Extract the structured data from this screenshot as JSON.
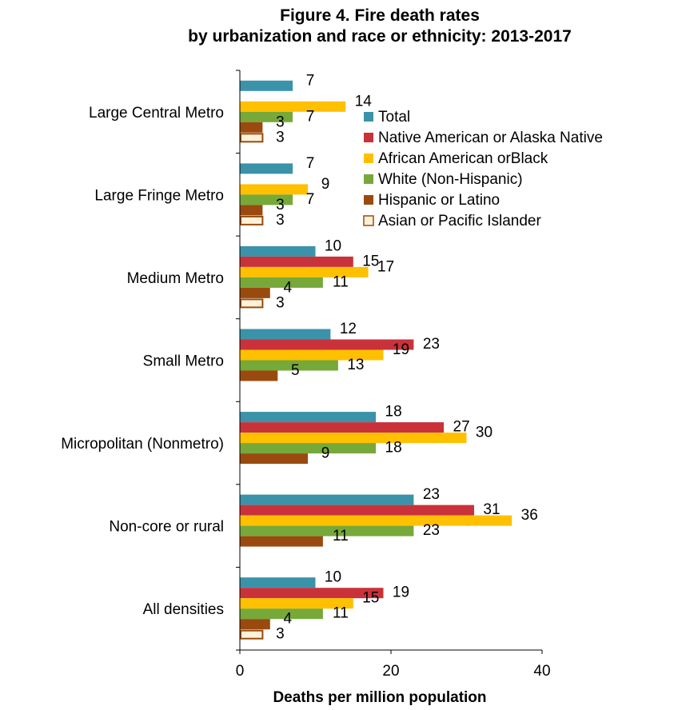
{
  "chart_data": {
    "type": "bar",
    "orientation": "horizontal",
    "title_lines": [
      "Figure 4. Fire death rates",
      "by urbanization and race or ethnicity: 2013-2017"
    ],
    "xlabel": "Deaths per million population",
    "ylabel": "",
    "xlim": [
      0,
      40
    ],
    "xticks": [
      0,
      20,
      40
    ],
    "grid": false,
    "legend_position": "top-right",
    "categories": [
      "Large Central Metro",
      "Large Fringe Metro",
      "Medium Metro",
      "Small Metro",
      "Micropolitan (Nonmetro)",
      "Non-core  or rural",
      "All densities"
    ],
    "series": [
      {
        "name": "Total",
        "color": "#3A93A8",
        "values": [
          7,
          7,
          10,
          12,
          18,
          23,
          10
        ]
      },
      {
        "name": "Native American or Alaska Native",
        "color": "#C9323A",
        "values": [
          null,
          null,
          15,
          23,
          27,
          31,
          19
        ]
      },
      {
        "name": "African American orBlack",
        "color": "#FFC000",
        "values": [
          14,
          9,
          17,
          19,
          30,
          36,
          15
        ]
      },
      {
        "name": "White (Non-Hispanic)",
        "color": "#77A83A",
        "values": [
          7,
          7,
          11,
          13,
          18,
          23,
          11
        ]
      },
      {
        "name": "Hispanic or Latino",
        "color": "#9A4A0E",
        "values": [
          3,
          3,
          4,
          5,
          9,
          11,
          4
        ]
      },
      {
        "name": "Asian or Pacific Islander",
        "color": "#FFF2D9",
        "stroke": "#9A4A0E",
        "values": [
          3,
          3,
          3,
          null,
          null,
          null,
          3
        ]
      }
    ]
  }
}
